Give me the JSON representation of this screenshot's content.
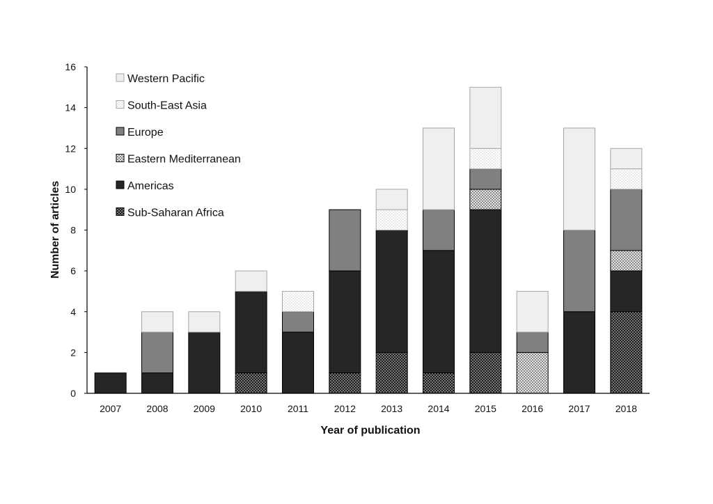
{
  "chart_data": {
    "type": "bar",
    "stacked": true,
    "title": "",
    "xlabel": "Year of publication",
    "ylabel": "Number of articles",
    "ylim": [
      0,
      16
    ],
    "yticks": [
      0,
      2,
      4,
      6,
      8,
      10,
      12,
      14,
      16
    ],
    "grid": false,
    "legend_position": "top-left",
    "categories": [
      "2007",
      "2008",
      "2009",
      "2010",
      "2011",
      "2012",
      "2013",
      "2014",
      "2015",
      "2016",
      "2017",
      "2018"
    ],
    "series": [
      {
        "name": "Sub-Saharan Africa",
        "pattern": "dots-dark",
        "color": "#222222",
        "values": [
          0,
          0,
          0,
          1,
          0,
          1,
          2,
          1,
          2,
          0,
          0,
          4
        ]
      },
      {
        "name": "Americas",
        "pattern": "solid",
        "color": "#262626",
        "values": [
          1,
          1,
          3,
          4,
          3,
          5,
          6,
          6,
          7,
          0,
          4,
          2
        ]
      },
      {
        "name": "Eastern Mediterranean",
        "pattern": "checker",
        "color": "#c4c4c4",
        "values": [
          0,
          0,
          0,
          0,
          0,
          0,
          0,
          0,
          1,
          2,
          0,
          1
        ]
      },
      {
        "name": "Europe",
        "pattern": "solid",
        "color": "#808080",
        "values": [
          0,
          2,
          0,
          0,
          1,
          3,
          0,
          2,
          1,
          1,
          4,
          3
        ]
      },
      {
        "name": "South-East Asia",
        "pattern": "dots-light",
        "color": "#f4f4f4",
        "values": [
          0,
          0,
          0,
          0,
          1,
          0,
          1,
          0,
          1,
          0,
          0,
          1
        ]
      },
      {
        "name": "Western Pacific",
        "pattern": "solid",
        "color": "#efefef",
        "values": [
          0,
          1,
          1,
          1,
          0,
          0,
          1,
          4,
          3,
          2,
          5,
          1
        ]
      }
    ],
    "legend_order": [
      "Western Pacific",
      "South-East Asia",
      "Europe",
      "Eastern Mediterranean",
      "Americas",
      "Sub-Saharan Africa"
    ]
  }
}
